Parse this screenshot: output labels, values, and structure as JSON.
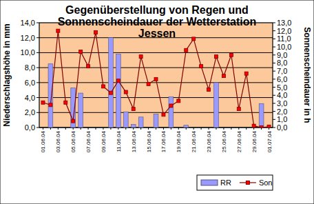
{
  "chart_data": {
    "type": "bar",
    "title": "Gegenüberstellung von Regen und Sonnenscheindauer der Wetterstation Jessen",
    "y_label": "Niederschlagshöhe in mm",
    "y2_label": "Sonnenscheindauer in h",
    "categories": [
      "01.06.04",
      null,
      "03.06.04",
      null,
      "05.06.04",
      null,
      "07.06.04",
      null,
      "09.06.04",
      null,
      "11.06.04",
      null,
      "13.06.04",
      null,
      "15.06.04",
      null,
      "17.06.04",
      null,
      "19.06.04",
      null,
      "21.06.04",
      null,
      "23.06.04",
      null,
      "25.06.04",
      null,
      "27.06.04",
      null,
      "29.06.04",
      null,
      "01.07.04"
    ],
    "series": [
      {
        "name": "RR",
        "type": "bar",
        "color": "#9999ff",
        "values": [
          0,
          8.5,
          0,
          0,
          5.3,
          4.6,
          0,
          0,
          0,
          12.0,
          9.8,
          2.1,
          0.4,
          1.4,
          0,
          1.8,
          0,
          4.1,
          0,
          0.3,
          0,
          0,
          0,
          6.0,
          0,
          0,
          0,
          0,
          0,
          3.2,
          0
        ]
      },
      {
        "name": "Son",
        "type": "line",
        "axis": "y2",
        "color": "#800000",
        "marker": "square",
        "values": [
          3.1,
          2.8,
          12.0,
          3.1,
          0.8,
          9.4,
          7.6,
          11.8,
          5.1,
          4.3,
          5.8,
          4.4,
          2.3,
          8.8,
          5.4,
          6.0,
          1.6,
          2.7,
          3.3,
          9.6,
          11.0,
          7.6,
          4.7,
          8.8,
          6.4,
          9.0,
          2.3,
          6.7,
          0.2,
          0.0,
          0.1
        ]
      }
    ],
    "ylim": [
      0,
      14
    ],
    "yticks": [
      {
        "value": 0,
        "label": "0,0"
      },
      {
        "value": 2,
        "label": "2,0"
      },
      {
        "value": 4,
        "label": "4,0"
      },
      {
        "value": 6,
        "label": "6,0"
      },
      {
        "value": 8,
        "label": "8,0"
      },
      {
        "value": 10,
        "label": "10,0"
      },
      {
        "value": 12,
        "label": "12,0"
      },
      {
        "value": 14,
        "label": "14,0"
      }
    ],
    "y2lim": [
      0,
      13
    ],
    "y2ticks": [
      {
        "value": 0,
        "label": "0,0"
      },
      {
        "value": 1,
        "label": "1,0"
      },
      {
        "value": 2,
        "label": "2,0"
      },
      {
        "value": 3,
        "label": "3,0"
      },
      {
        "value": 4,
        "label": "4,0"
      },
      {
        "value": 5,
        "label": "5,0"
      },
      {
        "value": 6,
        "label": "6,0"
      },
      {
        "value": 7,
        "label": "7,0"
      },
      {
        "value": 8,
        "label": "8,0"
      },
      {
        "value": 9,
        "label": "9,0"
      },
      {
        "value": 10,
        "label": "10,0"
      },
      {
        "value": 11,
        "label": "11,0"
      },
      {
        "value": 12,
        "label": "12,0"
      },
      {
        "value": 13,
        "label": "13,0"
      }
    ],
    "grid": true,
    "legend": "lower right"
  }
}
